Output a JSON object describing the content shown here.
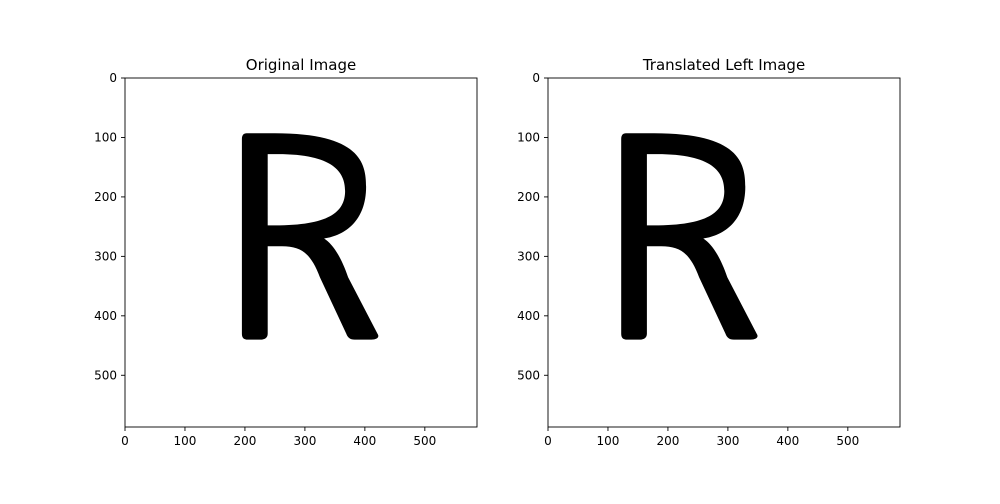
{
  "figure": {
    "background": "#ffffff"
  },
  "chart_data": [
    {
      "type": "image",
      "title": "Original Image",
      "xlabel": "",
      "ylabel": "",
      "image_size": [
        587,
        587
      ],
      "xlim": [
        0,
        587
      ],
      "ylim": [
        587,
        0
      ],
      "x_ticks": [
        0,
        100,
        200,
        300,
        400,
        500
      ],
      "y_ticks": [
        0,
        100,
        200,
        300,
        400,
        500
      ],
      "x_tick_labels": [
        "0",
        "100",
        "200",
        "300",
        "400",
        "500"
      ],
      "y_tick_labels": [
        "0",
        "100",
        "200",
        "300",
        "400",
        "500"
      ],
      "y_axis_inverted": true,
      "grid": false,
      "glyph": {
        "letter": "R",
        "color": "#000000",
        "stem_left": 195,
        "stem_right": 238,
        "top": 93,
        "bottom": 440,
        "bowl_right": 402,
        "bowl_bottom": 280,
        "leg_foot_right": 425
      }
    },
    {
      "type": "image",
      "title": "Translated Left Image",
      "xlabel": "",
      "ylabel": "",
      "image_size": [
        587,
        587
      ],
      "xlim": [
        0,
        587
      ],
      "ylim": [
        587,
        0
      ],
      "x_ticks": [
        0,
        100,
        200,
        300,
        400,
        500
      ],
      "y_ticks": [
        0,
        100,
        200,
        300,
        400,
        500
      ],
      "x_tick_labels": [
        "0",
        "100",
        "200",
        "300",
        "400",
        "500"
      ],
      "y_tick_labels": [
        "0",
        "100",
        "200",
        "300",
        "400",
        "500"
      ],
      "y_axis_inverted": true,
      "grid": false,
      "glyph": {
        "letter": "R",
        "color": "#000000",
        "stem_left": 122,
        "stem_right": 165,
        "top": 93,
        "bottom": 440,
        "bowl_right": 329,
        "bowl_bottom": 280,
        "leg_foot_right": 352
      }
    }
  ]
}
